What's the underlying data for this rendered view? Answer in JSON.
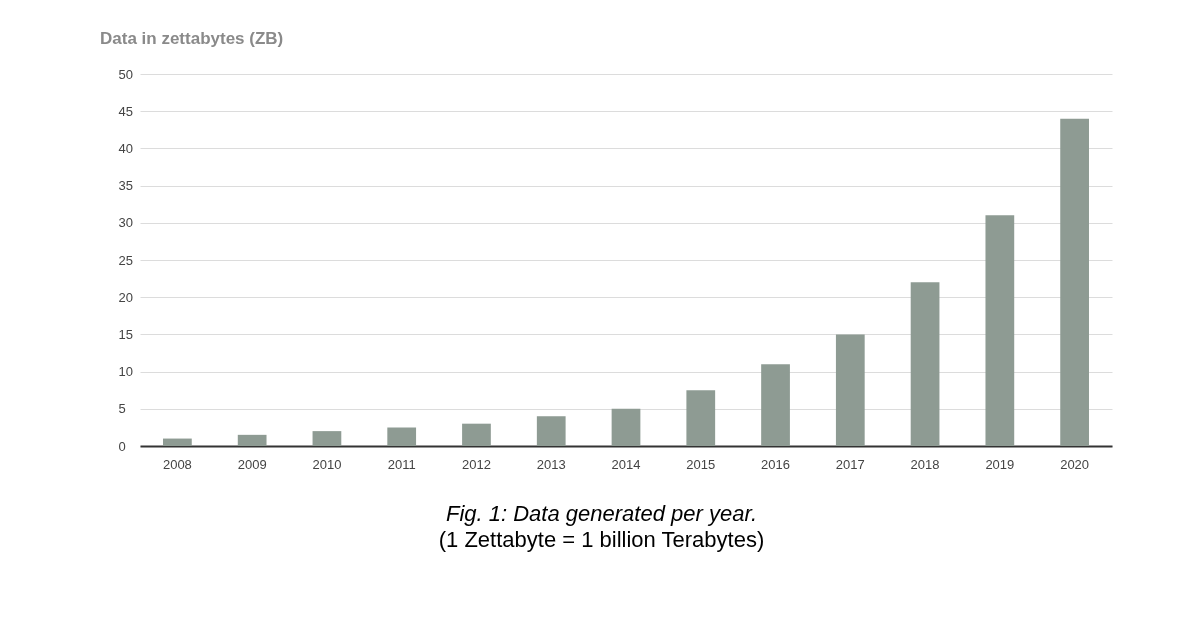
{
  "chart_data": {
    "type": "bar",
    "title": "Data in zettabytes (ZB)",
    "categories": [
      "2008",
      "2009",
      "2010",
      "2011",
      "2012",
      "2013",
      "2014",
      "2015",
      "2016",
      "2017",
      "2018",
      "2019",
      "2020"
    ],
    "values": [
      1,
      1.5,
      2,
      2.5,
      3,
      4,
      5,
      7.5,
      11,
      15,
      22,
      31,
      44
    ],
    "color": "#8e9b93",
    "ylim": [
      0,
      50
    ],
    "yticks": [
      0,
      5,
      10,
      15,
      20,
      25,
      30,
      35,
      40,
      45,
      50
    ],
    "grid": "y",
    "annotations": [
      "Fig. 1: Data generated per year.",
      "(1 Zettabyte = 1 billion Terabytes)"
    ]
  }
}
